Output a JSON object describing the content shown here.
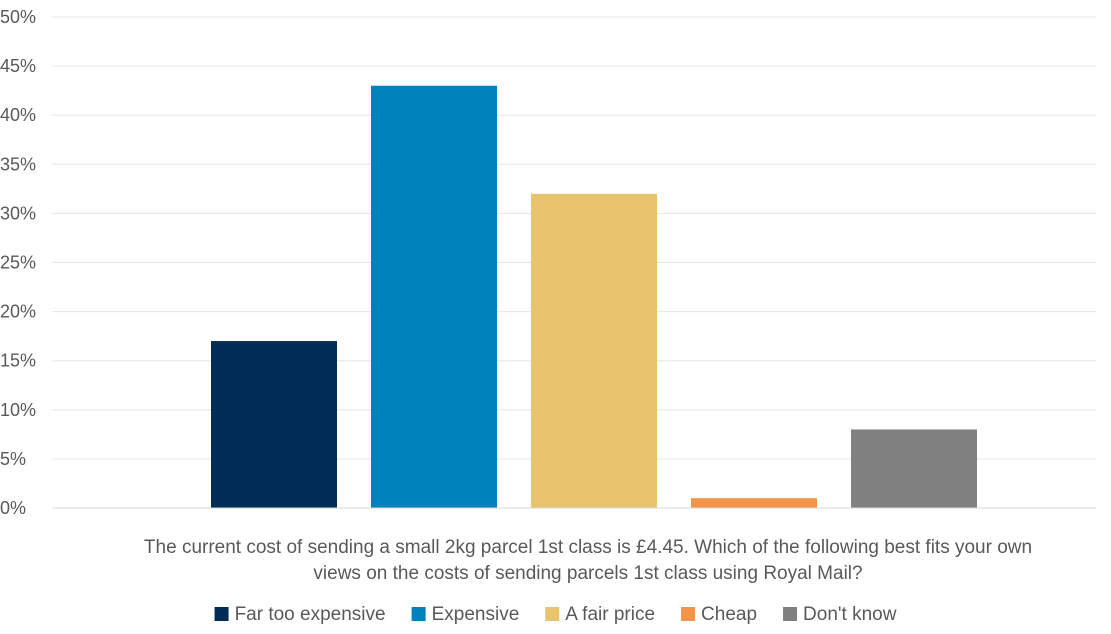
{
  "chart_data": {
    "type": "bar",
    "categories": [
      "Far too expensive",
      "Expensive",
      "A fair price",
      "Cheap",
      "Don't know"
    ],
    "values": [
      17,
      43,
      32,
      1,
      8
    ],
    "colors": [
      "#002d55",
      "#0082bd",
      "#e8c46e",
      "#f39449",
      "#808080"
    ],
    "ylim": [
      0,
      50
    ],
    "y_ticks": [
      0,
      5,
      10,
      15,
      20,
      25,
      30,
      35,
      40,
      45,
      50
    ],
    "y_tick_labels": [
      "0%",
      "5%",
      "10%",
      "15%",
      "20%",
      "25%",
      "30%",
      "35%",
      "40%",
      "45%",
      "50%"
    ],
    "value_unit": "%",
    "grid": true,
    "legend_position": "bottom",
    "caption_lines": [
      "The current cost of sending a small 2kg parcel 1st class is £4.45. Which of the following best fits your own",
      "views on the costs of sending parcels 1st class using Royal Mail?"
    ]
  }
}
